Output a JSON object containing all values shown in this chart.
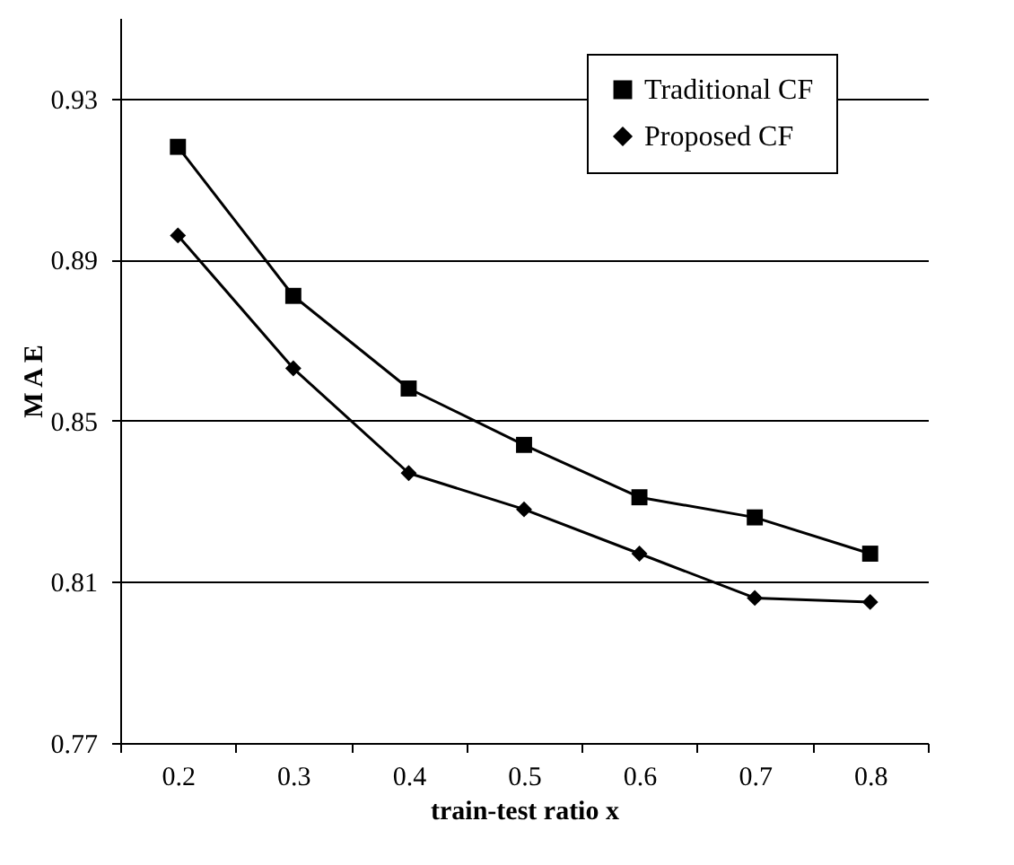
{
  "chart_data": {
    "type": "line",
    "xlabel": "train-test ratio x",
    "ylabel": "M A E",
    "categories": [
      "0.2",
      "0.3",
      "0.4",
      "0.5",
      "0.6",
      "0.7",
      "0.8"
    ],
    "series": [
      {
        "name": "Traditional CF",
        "color": "#000000",
        "marker": "square",
        "values": [
          0.918,
          0.881,
          0.858,
          0.844,
          0.831,
          0.826,
          0.817
        ]
      },
      {
        "name": "Proposed CF",
        "color": "#000000",
        "marker": "diamond",
        "values": [
          0.896,
          0.863,
          0.837,
          0.828,
          0.817,
          0.806,
          0.805
        ]
      }
    ],
    "ylim": [
      0.77,
      0.95
    ],
    "yticks": [
      0.77,
      0.81,
      0.85,
      0.89,
      0.93
    ],
    "grid": "y",
    "legend": "top right",
    "line_style": "solid"
  }
}
